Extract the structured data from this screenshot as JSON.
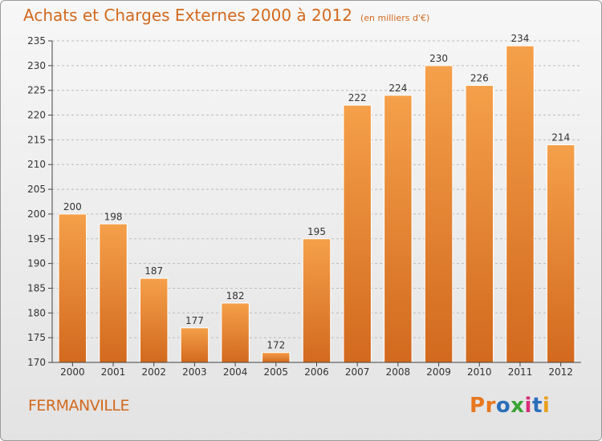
{
  "chart_data": {
    "type": "bar",
    "title": "Achats et Charges Externes 2000 à 2012",
    "unit_label": "(en milliers d'€)",
    "categories": [
      "2000",
      "2001",
      "2002",
      "2003",
      "2004",
      "2005",
      "2006",
      "2007",
      "2008",
      "2009",
      "2010",
      "2011",
      "2012"
    ],
    "values": [
      200,
      198,
      187,
      177,
      182,
      172,
      195,
      222,
      224,
      230,
      226,
      234,
      214
    ],
    "xlabel": "",
    "ylabel": "",
    "ylim": [
      170,
      235
    ],
    "yticks": [
      170,
      175,
      180,
      185,
      190,
      195,
      200,
      205,
      210,
      215,
      220,
      225,
      230,
      235
    ],
    "grid": "horizontal dashed",
    "data_labels": true,
    "bar_color_top": "#f5a04a",
    "bar_color_bottom": "#d2691e"
  },
  "commune": "FERMANVILLE",
  "brand": {
    "text": "Proxiti",
    "colors": [
      "#e8771e",
      "#e8771e",
      "#2a6ebb",
      "#3aa335",
      "#d62d7a",
      "#2a6ebb",
      "#e8a01e"
    ]
  },
  "colors": {
    "title": "#d2691e",
    "axis": "#444444",
    "grid": "#bbbbbb"
  }
}
